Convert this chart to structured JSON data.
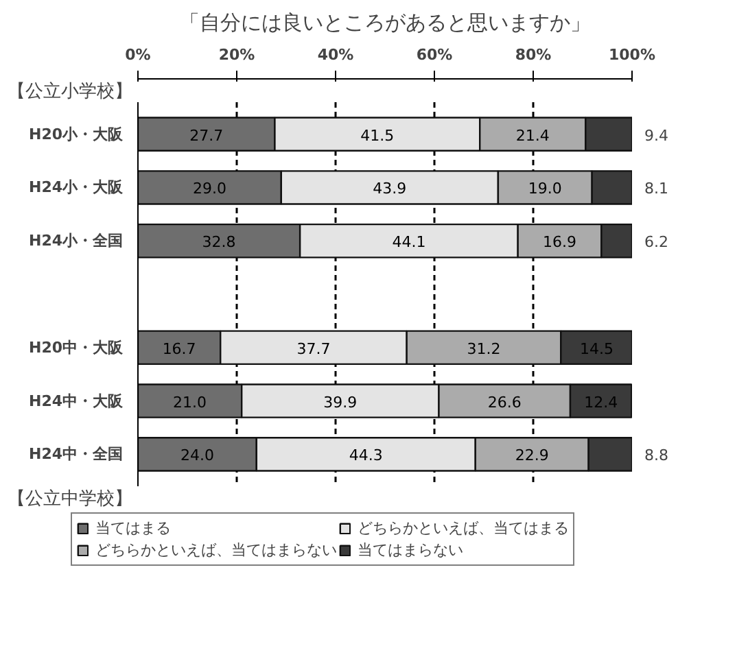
{
  "chart_data": {
    "type": "bar",
    "orientation": "horizontal",
    "stacked": true,
    "title": "「自分には良いところがあると思いますか」",
    "categories": [
      "H20小・大阪",
      "H24小・大阪",
      "H24小・全国",
      null,
      "H20中・大阪",
      "H24中・大阪",
      "H24中・全国"
    ],
    "series": [
      {
        "name": "当てはまる",
        "color": "#6e6e6e",
        "values": [
          27.7,
          29.0,
          32.8,
          null,
          16.7,
          21.0,
          24.0
        ],
        "value_labels": [
          "27.7",
          "29.0",
          "32.8",
          null,
          "16.7",
          "21.0",
          "24.0"
        ]
      },
      {
        "name": "どちらかといえば、当てはまる",
        "color": "#e4e4e4",
        "values": [
          41.5,
          43.9,
          44.1,
          null,
          37.7,
          39.9,
          44.3
        ],
        "value_labels": [
          "41.5",
          "43.9",
          "44.1",
          null,
          "37.7",
          "39.9",
          "44.3"
        ]
      },
      {
        "name": "どちらかといえば、当てはまらない",
        "color": "#ababab",
        "values": [
          21.4,
          19.0,
          16.9,
          null,
          31.2,
          26.6,
          22.9
        ],
        "value_labels": [
          "21.4",
          "19.0",
          "16.9",
          null,
          "31.2",
          "26.6",
          "22.9"
        ]
      },
      {
        "name": "当てはまらない",
        "color": "#3a3a3a",
        "values": [
          9.4,
          8.1,
          6.2,
          null,
          14.5,
          12.4,
          8.8
        ],
        "value_labels": [
          "9.4",
          "8.1",
          "6.2",
          null,
          "14.5",
          "12.4",
          "8.8"
        ]
      }
    ],
    "xlim": [
      0,
      100
    ],
    "xticks": [
      {
        "value": 0,
        "label": "0%"
      },
      {
        "value": 20,
        "label": "20%"
      },
      {
        "value": 40,
        "label": "40%"
      },
      {
        "value": 60,
        "label": "60%"
      },
      {
        "value": 80,
        "label": "80%"
      },
      {
        "value": 100,
        "label": "100%"
      }
    ],
    "grid": "x",
    "legend": "bottom",
    "annotations": [
      "【公立小学校】",
      "【公立中学校】"
    ]
  }
}
